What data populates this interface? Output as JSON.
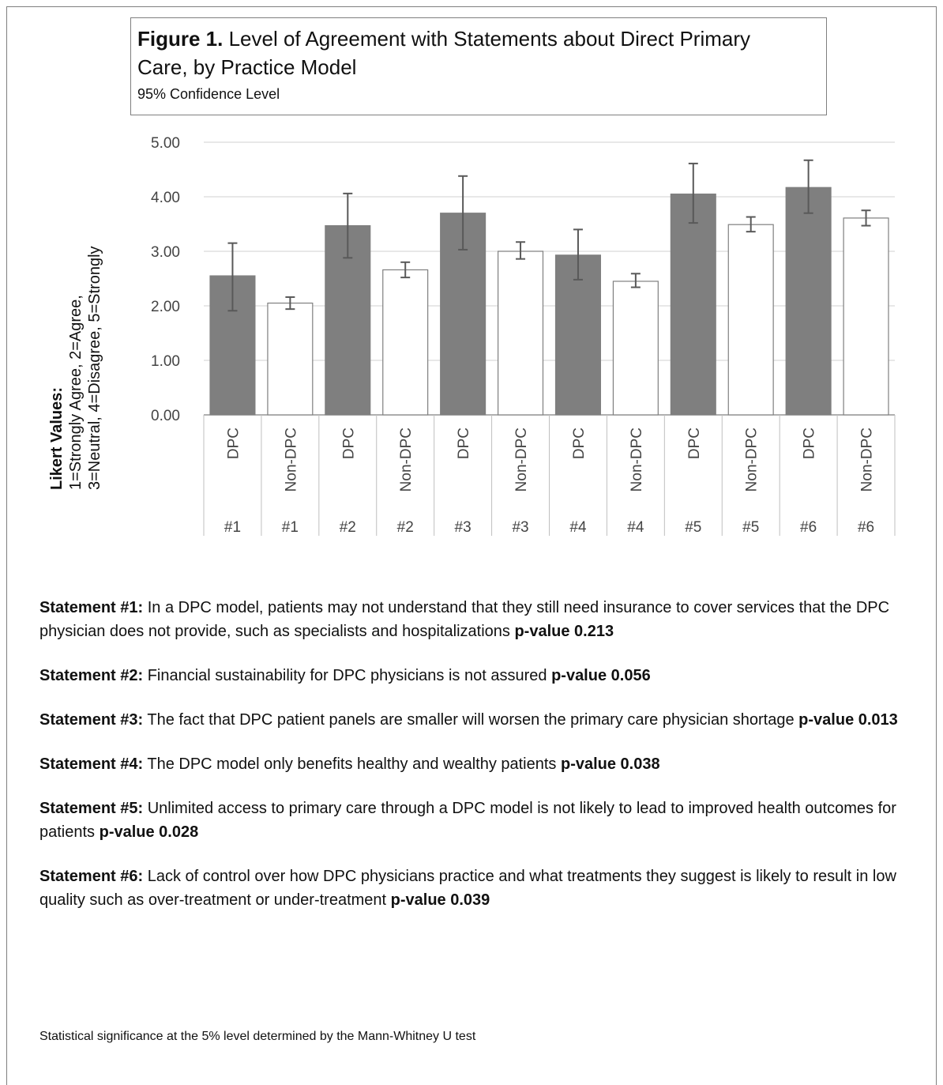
{
  "title": {
    "prefix": "Figure 1.",
    "text": "Level of Agreement with Statements about Direct Primary",
    "text2": "Care, by Practice Model",
    "subtitle": "95% Confidence Level"
  },
  "y_axis": {
    "label_bold": "Likert Values:",
    "label_line1": "1=Strongly Agree,  2=Agree,",
    "label_line2": "3=Neutral, 4=Disagree, 5=Strongly"
  },
  "chart_data": {
    "type": "bar",
    "title": "Level of Agreement with Statements about Direct Primary Care, by Practice Model",
    "subtitle": "95% Confidence Level",
    "ylabel": "Likert Values: 1=Strongly Agree, 2=Agree, 3=Neutral, 4=Disagree, 5=Strongly",
    "ylim": [
      0,
      5
    ],
    "yticks": [
      "0.00",
      "1.00",
      "2.00",
      "3.00",
      "4.00",
      "5.00"
    ],
    "grid": true,
    "categories": [
      {
        "model": "DPC",
        "statement": "#1"
      },
      {
        "model": "Non-DPC",
        "statement": "#1"
      },
      {
        "model": "DPC",
        "statement": "#2"
      },
      {
        "model": "Non-DPC",
        "statement": "#2"
      },
      {
        "model": "DPC",
        "statement": "#3"
      },
      {
        "model": "Non-DPC",
        "statement": "#3"
      },
      {
        "model": "DPC",
        "statement": "#4"
      },
      {
        "model": "Non-DPC",
        "statement": "#4"
      },
      {
        "model": "DPC",
        "statement": "#5"
      },
      {
        "model": "Non-DPC",
        "statement": "#5"
      },
      {
        "model": "DPC",
        "statement": "#6"
      },
      {
        "model": "Non-DPC",
        "statement": "#6"
      }
    ],
    "values": [
      2.55,
      2.05,
      3.47,
      2.66,
      3.7,
      3.0,
      2.93,
      2.45,
      4.05,
      3.49,
      4.17,
      3.61
    ],
    "error_low": [
      1.91,
      1.94,
      2.88,
      2.52,
      3.03,
      2.86,
      2.48,
      2.34,
      3.52,
      3.36,
      3.7,
      3.47
    ],
    "error_high": [
      3.15,
      2.16,
      4.06,
      2.8,
      4.38,
      3.17,
      3.4,
      2.59,
      4.61,
      3.63,
      4.67,
      3.75
    ],
    "colors": {
      "DPC": "#7f7f7f",
      "Non-DPC": "#ffffff",
      "outline": "#7f7f7f",
      "grid": "#d9d9d9",
      "error": "#595959"
    }
  },
  "statements": [
    {
      "label": "Statement #1:",
      "text": " In a DPC model, patients may not understand that they still need insurance to cover services that the  DPC physician does not provide, such as specialists and hospitalizations ",
      "p": "p-value 0.213"
    },
    {
      "label": "Statement #2:",
      "text": " Financial sustainability for DPC physicians is not assured ",
      "p": "p-value 0.056"
    },
    {
      "label": "Statement #3:",
      "text": " The fact that DPC patient panels are smaller will worsen the primary care physician shortage ",
      "p": "p-value 0.013"
    },
    {
      "label": "Statement #4:",
      "text": " The DPC model only benefits healthy and wealthy patients ",
      "p": "p-value 0.038"
    },
    {
      "label": "Statement #5:",
      "text": " Unlimited access to primary care through a DPC model is not likely to lead to improved health outcomes for patients ",
      "p": "p-value 0.028"
    },
    {
      "label": "Statement #6:",
      "text": " Lack of control over how DPC physicians practice and what treatments they suggest is likely to result in low quality such as over-treatment or under-treatment ",
      "p": "p-value 0.039"
    }
  ],
  "footnote": "Statistical significance at the 5% level determined by the Mann-Whitney U test"
}
